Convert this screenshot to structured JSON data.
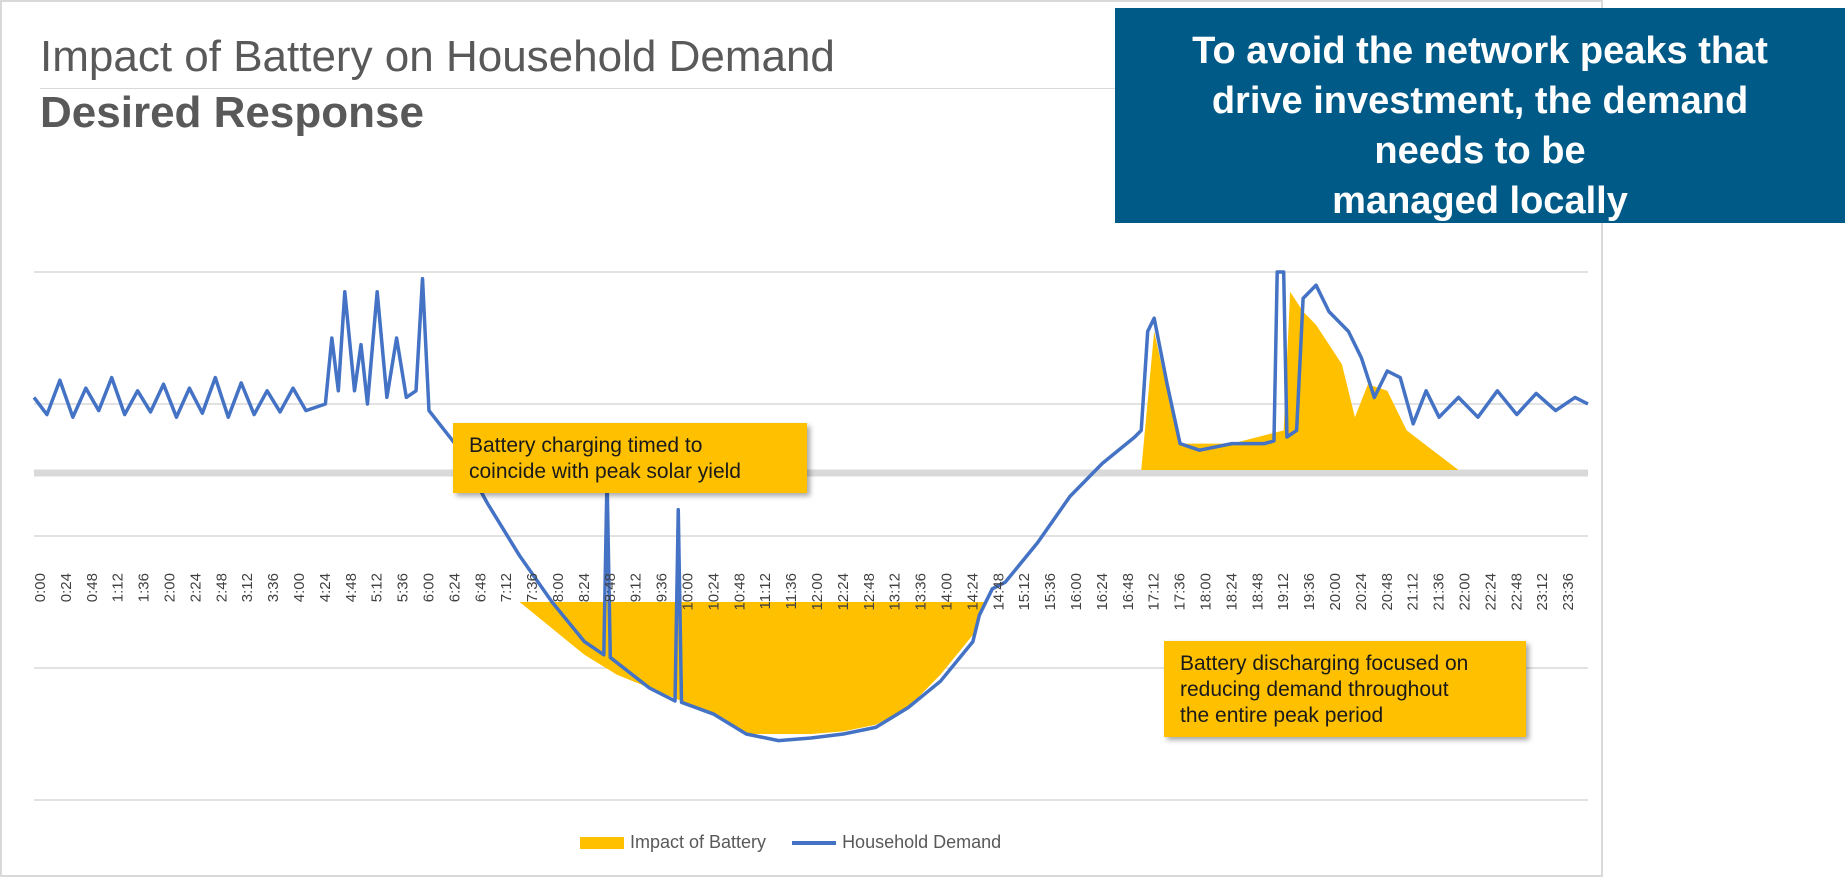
{
  "title": "Impact of Battery on Household Demand",
  "subtitle": "Desired Response",
  "callout": {
    "lines": [
      "To avoid the network peaks that",
      "drive investment, the demand",
      "needs to be",
      "managed locally"
    ]
  },
  "annotations": {
    "charging": [
      "Battery charging timed to",
      "coincide with peak solar yield"
    ],
    "discharging": [
      "Battery discharging focused on",
      "reducing demand throughout",
      "the entire peak period"
    ]
  },
  "legend": {
    "impact": "Impact of Battery",
    "demand": "Household Demand"
  },
  "colors": {
    "demand": "#4472c4",
    "impact": "#ffc000",
    "callout_bg": "#005a87"
  },
  "chart_data": {
    "type": "line",
    "ylim": [
      -2.5,
      2
    ],
    "grid": true,
    "x_tick_labels": [
      "0:00",
      "0:24",
      "0:48",
      "1:12",
      "1:36",
      "2:00",
      "2:24",
      "2:48",
      "3:12",
      "3:36",
      "4:00",
      "4:24",
      "4:48",
      "5:12",
      "5:36",
      "6:00",
      "6:24",
      "6:48",
      "7:12",
      "7:36",
      "8:00",
      "8:24",
      "8:48",
      "9:12",
      "9:36",
      "10:00",
      "10:24",
      "10:48",
      "11:12",
      "11:36",
      "12:00",
      "12:24",
      "12:48",
      "13:12",
      "13:36",
      "14:00",
      "14:24",
      "14:48",
      "15:12",
      "15:36",
      "16:00",
      "16:24",
      "16:48",
      "17:12",
      "17:36",
      "18:00",
      "18:24",
      "18:48",
      "19:12",
      "19:36",
      "20:00",
      "20:24",
      "20:48",
      "21:12",
      "21:36",
      "22:00",
      "22:24",
      "22:48",
      "23:12",
      "23:36"
    ],
    "series": [
      {
        "name": "Household Demand",
        "type": "line",
        "points": [
          [
            0.0,
            0.55
          ],
          [
            0.2,
            0.42
          ],
          [
            0.4,
            0.68
          ],
          [
            0.6,
            0.4
          ],
          [
            0.8,
            0.62
          ],
          [
            1.0,
            0.45
          ],
          [
            1.2,
            0.7
          ],
          [
            1.4,
            0.42
          ],
          [
            1.6,
            0.6
          ],
          [
            1.8,
            0.44
          ],
          [
            2.0,
            0.65
          ],
          [
            2.2,
            0.4
          ],
          [
            2.4,
            0.62
          ],
          [
            2.6,
            0.43
          ],
          [
            2.8,
            0.7
          ],
          [
            3.0,
            0.4
          ],
          [
            3.2,
            0.66
          ],
          [
            3.4,
            0.42
          ],
          [
            3.6,
            0.6
          ],
          [
            3.8,
            0.44
          ],
          [
            4.0,
            0.62
          ],
          [
            4.2,
            0.45
          ],
          [
            4.5,
            0.5
          ],
          [
            4.6,
            1.0
          ],
          [
            4.7,
            0.6
          ],
          [
            4.8,
            1.35
          ],
          [
            4.95,
            0.6
          ],
          [
            5.05,
            0.95
          ],
          [
            5.15,
            0.5
          ],
          [
            5.3,
            1.35
          ],
          [
            5.45,
            0.55
          ],
          [
            5.6,
            1.0
          ],
          [
            5.75,
            0.55
          ],
          [
            5.9,
            0.6
          ],
          [
            6.0,
            1.45
          ],
          [
            6.1,
            0.45
          ],
          [
            6.5,
            0.2
          ],
          [
            7.0,
            -0.25
          ],
          [
            7.5,
            -0.65
          ],
          [
            8.0,
            -1.0
          ],
          [
            8.5,
            -1.3
          ],
          [
            8.8,
            -1.4
          ],
          [
            8.85,
            -0.05
          ],
          [
            8.9,
            -1.42
          ],
          [
            9.5,
            -1.65
          ],
          [
            9.9,
            -1.75
          ],
          [
            9.95,
            -0.3
          ],
          [
            10.0,
            -1.76
          ],
          [
            10.5,
            -1.85
          ],
          [
            11.0,
            -2.0
          ],
          [
            11.5,
            -2.05
          ],
          [
            12.0,
            -2.03
          ],
          [
            12.5,
            -2.0
          ],
          [
            13.0,
            -1.95
          ],
          [
            13.5,
            -1.8
          ],
          [
            14.0,
            -1.6
          ],
          [
            14.5,
            -1.3
          ],
          [
            14.6,
            -1.1
          ],
          [
            14.8,
            -0.9
          ],
          [
            15.0,
            -0.85
          ],
          [
            15.5,
            -0.55
          ],
          [
            16.0,
            -0.2
          ],
          [
            16.5,
            0.05
          ],
          [
            17.0,
            0.25
          ],
          [
            17.1,
            0.3
          ],
          [
            17.2,
            1.05
          ],
          [
            17.3,
            1.15
          ],
          [
            17.5,
            0.65
          ],
          [
            17.7,
            0.2
          ],
          [
            18.0,
            0.15
          ],
          [
            18.5,
            0.2
          ],
          [
            19.0,
            0.2
          ],
          [
            19.15,
            0.22
          ],
          [
            19.2,
            1.5
          ],
          [
            19.3,
            1.5
          ],
          [
            19.35,
            0.25
          ],
          [
            19.5,
            0.3
          ],
          [
            19.6,
            1.3
          ],
          [
            19.8,
            1.4
          ],
          [
            20.0,
            1.2
          ],
          [
            20.3,
            1.05
          ],
          [
            20.5,
            0.85
          ],
          [
            20.7,
            0.55
          ],
          [
            20.9,
            0.75
          ],
          [
            21.1,
            0.7
          ],
          [
            21.3,
            0.35
          ],
          [
            21.5,
            0.6
          ],
          [
            21.7,
            0.4
          ],
          [
            22.0,
            0.55
          ],
          [
            22.3,
            0.4
          ],
          [
            22.6,
            0.6
          ],
          [
            22.9,
            0.42
          ],
          [
            23.2,
            0.58
          ],
          [
            23.5,
            0.45
          ],
          [
            23.8,
            0.55
          ],
          [
            24.0,
            0.5
          ]
        ]
      },
      {
        "name": "Impact of Battery",
        "type": "area",
        "segments": [
          [
            [
              7.5,
              -1.0
            ],
            [
              8.0,
              -1.2
            ],
            [
              8.5,
              -1.4
            ],
            [
              9.0,
              -1.55
            ],
            [
              9.5,
              -1.65
            ],
            [
              10.0,
              -1.75
            ],
            [
              10.5,
              -1.85
            ],
            [
              11.0,
              -2.0
            ],
            [
              12.0,
              -2.0
            ],
            [
              12.5,
              -1.98
            ],
            [
              13.0,
              -1.93
            ],
            [
              13.5,
              -1.8
            ],
            [
              14.0,
              -1.55
            ],
            [
              14.5,
              -1.25
            ],
            [
              14.7,
              -1.0
            ]
          ],
          [
            [
              17.1,
              0.0
            ],
            [
              17.3,
              1.05
            ],
            [
              17.5,
              0.6
            ],
            [
              17.7,
              0.2
            ],
            [
              18.5,
              0.2
            ],
            [
              19.3,
              0.3
            ],
            [
              19.4,
              1.35
            ],
            [
              19.6,
              1.2
            ],
            [
              19.8,
              1.1
            ],
            [
              20.2,
              0.8
            ],
            [
              20.4,
              0.4
            ],
            [
              20.6,
              0.65
            ],
            [
              20.9,
              0.6
            ],
            [
              21.2,
              0.3
            ],
            [
              21.6,
              0.15
            ],
            [
              22.0,
              0.0
            ]
          ]
        ]
      }
    ]
  }
}
